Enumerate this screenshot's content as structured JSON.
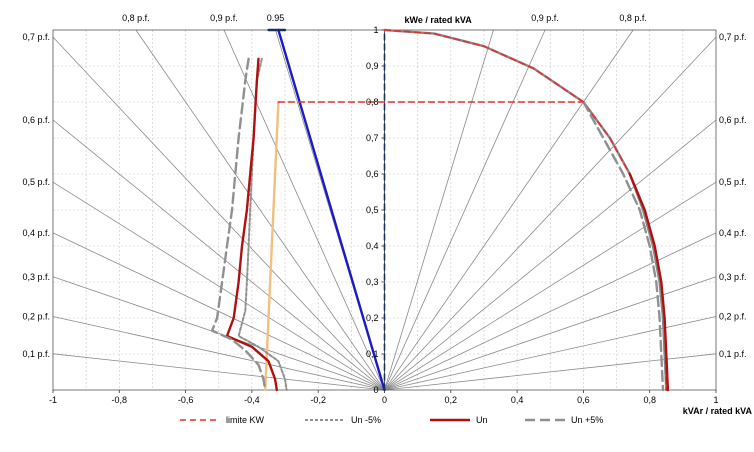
{
  "chart_data": {
    "type": "line",
    "title": "",
    "xlabel": "kVAr / rated kVA",
    "ylabel": "kWe / rated kVA",
    "xlim": [
      -1,
      1
    ],
    "ylim": [
      0,
      1
    ],
    "x_ticks": [
      -1,
      -0.8,
      -0.6,
      -0.4,
      -0.2,
      0,
      0.2,
      0.4,
      0.6,
      0.8,
      1
    ],
    "x_tick_labels": [
      "-1",
      "-0,8",
      "-0,6",
      "-0,4",
      "-0,2",
      "0",
      "0,2",
      "0,4",
      "0,6",
      "0,8",
      "1"
    ],
    "y_ticks": [
      0,
      0.1,
      0.2,
      0.3,
      0.4,
      0.5,
      0.6,
      0.7,
      0.8,
      0.9,
      1
    ],
    "y_tick_labels": [
      "0",
      "0,1",
      "0,2",
      "0,3",
      "0,4",
      "0,5",
      "0,6",
      "0,7",
      "0,8",
      "0,9",
      "1"
    ],
    "grid": true,
    "legend_position": "bottom",
    "power_factor_lines": [
      0.1,
      0.2,
      0.3,
      0.4,
      0.5,
      0.6,
      0.7,
      0.8,
      0.9,
      0.95
    ],
    "pf_labels_left": [
      {
        "pf": 0.7,
        "text": "0,7 p.f."
      },
      {
        "pf": 0.6,
        "text": "0,6 p.f."
      },
      {
        "pf": 0.5,
        "text": "0,5 p.f."
      },
      {
        "pf": 0.4,
        "text": "0,4 p.f."
      },
      {
        "pf": 0.3,
        "text": "0,3 p.f."
      },
      {
        "pf": 0.2,
        "text": "0,2 p.f."
      },
      {
        "pf": 0.1,
        "text": "0,1 p.f."
      }
    ],
    "pf_labels_right": [
      {
        "pf": 0.7,
        "text": "0,7 p.f."
      },
      {
        "pf": 0.6,
        "text": "0,6 p.f."
      },
      {
        "pf": 0.5,
        "text": "0,5 p.f."
      },
      {
        "pf": 0.4,
        "text": "0,4 p.f."
      },
      {
        "pf": 0.3,
        "text": "0,3 p.f."
      },
      {
        "pf": 0.2,
        "text": "0,2 p.f."
      },
      {
        "pf": 0.1,
        "text": "0,1 p.f."
      }
    ],
    "pf_labels_top": [
      {
        "pf": 0.8,
        "side": "left",
        "text": "0,8 p.f."
      },
      {
        "pf": 0.9,
        "side": "left",
        "text": "0,9 p.f."
      },
      {
        "pf": 0.95,
        "side": "left",
        "text": "0.95"
      },
      {
        "pf": 0.9,
        "side": "right",
        "text": "0,9 p.f."
      },
      {
        "pf": 0.8,
        "side": "right",
        "text": "0,8 p.f."
      }
    ],
    "series": [
      {
        "name": "limite KW",
        "color": "#e03030",
        "style": "dashed",
        "points": [
          [
            -0.32,
            0.8
          ],
          [
            0.6,
            0.8
          ]
        ]
      },
      {
        "name": "Un -5%",
        "color": "#909090",
        "style": "dotted",
        "points": [
          [
            -0.37,
            0.92
          ],
          [
            -0.385,
            0.86
          ],
          [
            -0.39,
            0.78
          ],
          [
            -0.395,
            0.7
          ],
          [
            -0.4,
            0.6
          ],
          [
            -0.405,
            0.5
          ],
          [
            -0.41,
            0.4
          ],
          [
            -0.415,
            0.3
          ],
          [
            -0.42,
            0.22
          ],
          [
            -0.44,
            0.15
          ],
          [
            -0.38,
            0.12
          ],
          [
            -0.32,
            0.08
          ],
          [
            -0.3,
            0.03
          ],
          [
            -0.295,
            0.0
          ]
        ]
      },
      {
        "name": "Un",
        "color": "#b01010",
        "style": "solid",
        "points": [
          [
            -0.38,
            0.92
          ],
          [
            -0.385,
            0.86
          ],
          [
            -0.39,
            0.78
          ],
          [
            -0.395,
            0.7
          ],
          [
            -0.405,
            0.6
          ],
          [
            -0.415,
            0.5
          ],
          [
            -0.43,
            0.4
          ],
          [
            -0.44,
            0.3
          ],
          [
            -0.455,
            0.2
          ],
          [
            -0.475,
            0.15
          ],
          [
            -0.4,
            0.12
          ],
          [
            -0.35,
            0.08
          ],
          [
            -0.33,
            0.03
          ],
          [
            -0.325,
            0.0
          ]
        ]
      },
      {
        "name": "Un +5%",
        "color": "#909090",
        "style": "dash-long",
        "points": [
          [
            -0.41,
            0.92
          ],
          [
            -0.42,
            0.86
          ],
          [
            -0.43,
            0.78
          ],
          [
            -0.44,
            0.7
          ],
          [
            -0.45,
            0.6
          ],
          [
            -0.46,
            0.5
          ],
          [
            -0.475,
            0.4
          ],
          [
            -0.49,
            0.3
          ],
          [
            -0.505,
            0.2
          ],
          [
            -0.52,
            0.165
          ],
          [
            -0.46,
            0.14
          ],
          [
            -0.42,
            0.11
          ],
          [
            -0.38,
            0.07
          ],
          [
            -0.365,
            0.03
          ],
          [
            -0.36,
            0.0
          ]
        ]
      }
    ],
    "unlabeled_series": [
      {
        "color": "#f0c080",
        "style": "solid",
        "points": [
          [
            -0.32,
            0.8
          ],
          [
            -0.36,
            0.0
          ]
        ]
      },
      {
        "color": "#1a1acc",
        "style": "solid",
        "points": [
          [
            -0.32,
            1.0
          ],
          [
            0.0,
            0.0
          ]
        ]
      },
      {
        "color": "#1a3060",
        "style": "solid",
        "points": [
          [
            -0.35,
            1.0
          ],
          [
            -0.3,
            1.0
          ]
        ]
      },
      {
        "color": "#1a3060",
        "style": "dashed",
        "points": [
          [
            0.0,
            0.0
          ],
          [
            0.0,
            1.0
          ]
        ]
      },
      {
        "color": "#888888",
        "style": "solid",
        "points": [
          [
            0.0,
            1.0
          ],
          [
            0.15,
            0.99
          ],
          [
            0.3,
            0.955
          ],
          [
            0.45,
            0.893
          ],
          [
            0.6,
            0.8
          ],
          [
            0.68,
            0.7
          ],
          [
            0.74,
            0.6
          ],
          [
            0.78,
            0.5
          ],
          [
            0.81,
            0.4
          ],
          [
            0.83,
            0.3
          ],
          [
            0.84,
            0.2
          ],
          [
            0.845,
            0.1
          ],
          [
            0.85,
            0.0
          ]
        ]
      },
      {
        "color": "#e03030",
        "style": "dashed",
        "points": [
          [
            0.0,
            1.0
          ],
          [
            0.15,
            0.99
          ],
          [
            0.3,
            0.955
          ],
          [
            0.45,
            0.893
          ],
          [
            0.6,
            0.8
          ],
          [
            0.68,
            0.7
          ],
          [
            0.74,
            0.6
          ],
          [
            0.785,
            0.5
          ],
          [
            0.815,
            0.4
          ],
          [
            0.835,
            0.3
          ],
          [
            0.845,
            0.2
          ],
          [
            0.848,
            0.1
          ],
          [
            0.85,
            0.0
          ]
        ]
      },
      {
        "color": "#b01010",
        "style": "solid",
        "points": [
          [
            0.74,
            0.6
          ],
          [
            0.785,
            0.5
          ],
          [
            0.815,
            0.4
          ],
          [
            0.835,
            0.3
          ],
          [
            0.845,
            0.2
          ],
          [
            0.85,
            0.1
          ],
          [
            0.855,
            0.0
          ]
        ]
      },
      {
        "color": "#909090",
        "style": "dash-long",
        "points": [
          [
            0.6,
            0.8
          ],
          [
            0.66,
            0.7
          ],
          [
            0.72,
            0.6
          ],
          [
            0.77,
            0.5
          ],
          [
            0.8,
            0.4
          ],
          [
            0.82,
            0.3
          ],
          [
            0.83,
            0.2
          ],
          [
            0.835,
            0.1
          ],
          [
            0.84,
            0.0
          ]
        ]
      }
    ]
  }
}
